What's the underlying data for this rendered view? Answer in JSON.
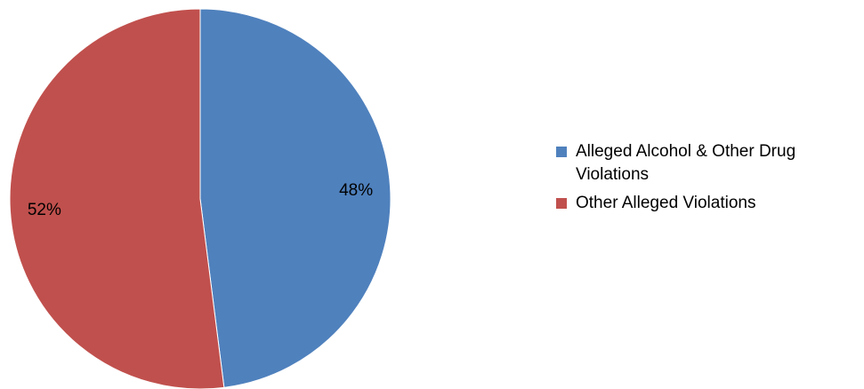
{
  "chart_data": {
    "type": "pie",
    "title": "",
    "slices": [
      {
        "label": "Alleged Alcohol & Other Drug Violations",
        "value": 48,
        "display": "48%",
        "color": "#4f81bd"
      },
      {
        "label": "Other Alleged Violations",
        "value": 52,
        "display": "52%",
        "color": "#c0504d"
      }
    ],
    "legend_position": "right",
    "start_angle": "12 o'clock, clockwise"
  }
}
